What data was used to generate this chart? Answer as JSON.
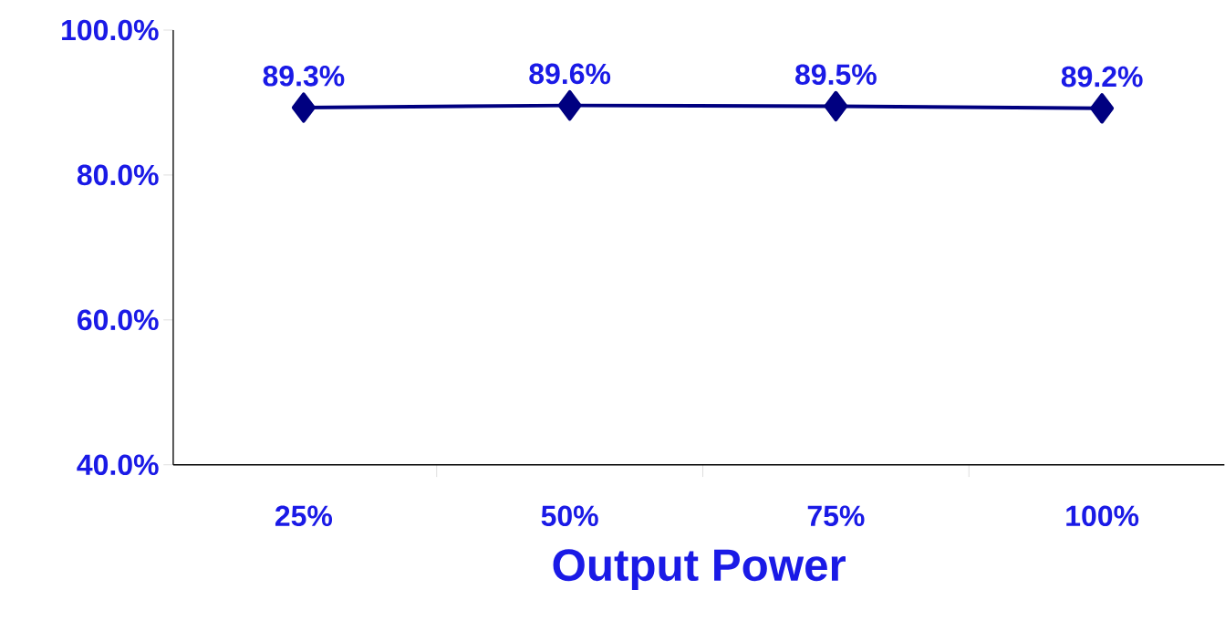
{
  "chart_data": {
    "type": "line",
    "xlabel": "Output Power",
    "categories": [
      "25%",
      "50%",
      "75%",
      "100%"
    ],
    "values": [
      89.3,
      89.6,
      89.5,
      89.2
    ],
    "value_labels": [
      "89.3%",
      "89.6%",
      "89.5%",
      "89.2%"
    ],
    "color": "#000080",
    "marker": "diamond",
    "line_style": "solid",
    "ylim": [
      40,
      100
    ],
    "yticks": [
      {
        "value": 40,
        "label": "40.0%"
      },
      {
        "value": 60,
        "label": "60.0%"
      },
      {
        "value": 80,
        "label": "80.0%"
      },
      {
        "value": 100,
        "label": "100.0%"
      }
    ],
    "grid": false
  }
}
